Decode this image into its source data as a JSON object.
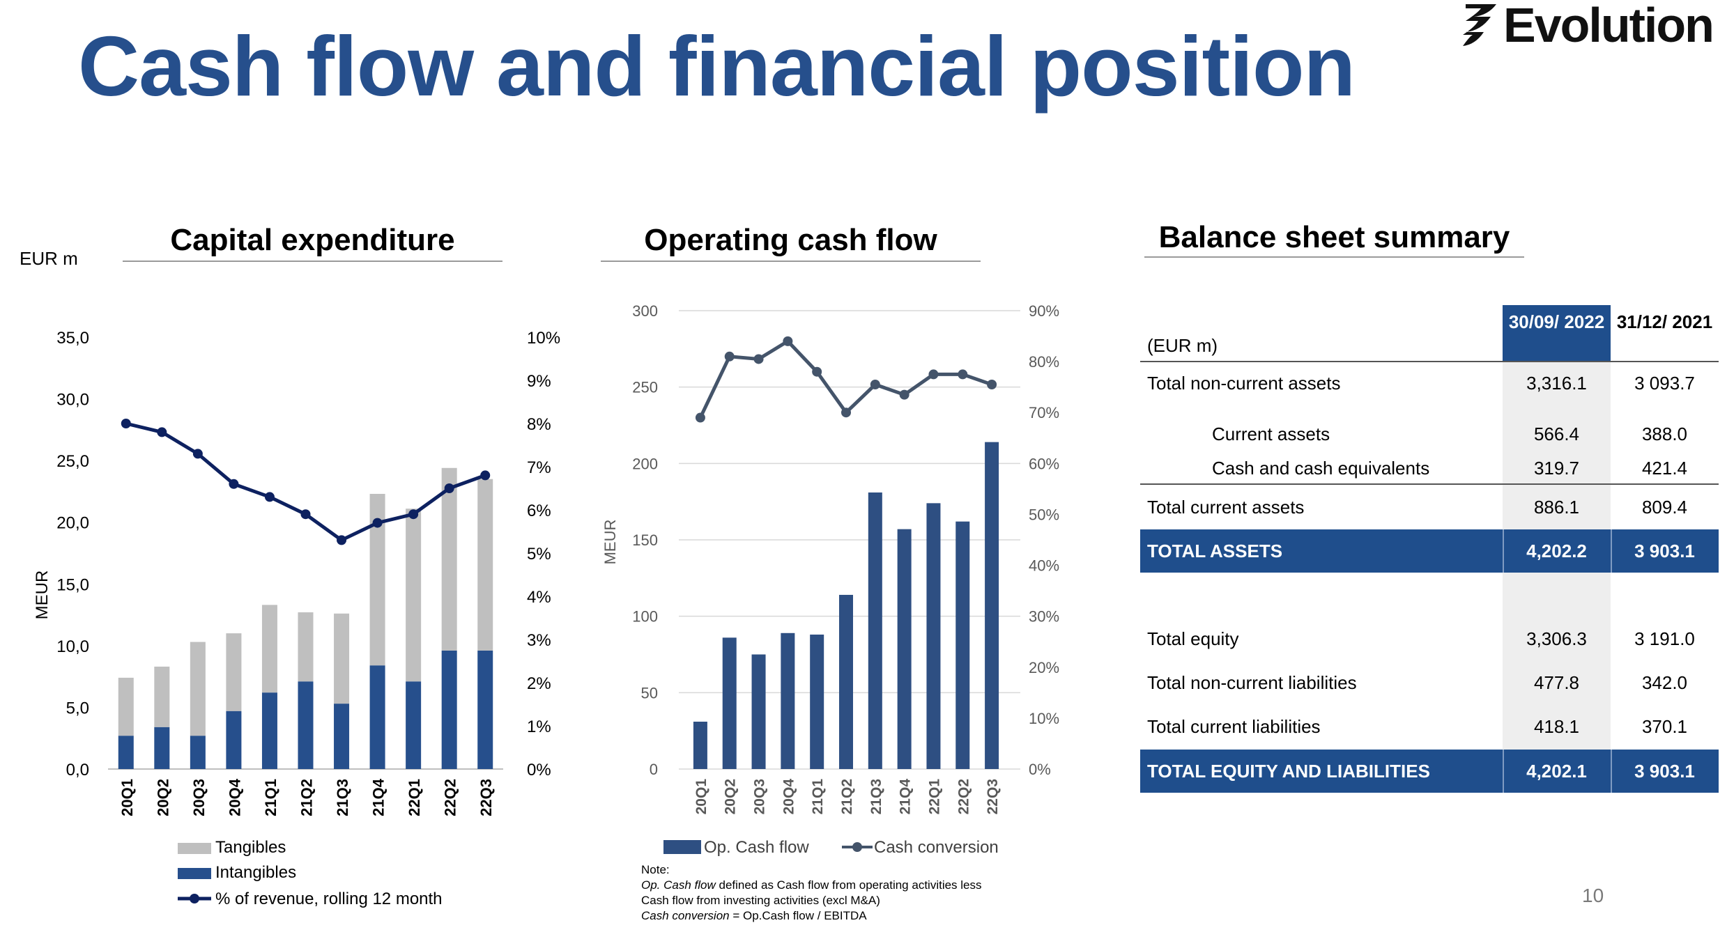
{
  "title": "Cash flow and financial position",
  "logo": {
    "text": "Evolution"
  },
  "page_number": "10",
  "capex": {
    "section_title": "Capital expenditure",
    "unit_label": "EUR m",
    "ylabel": "MEUR",
    "left_ticks": [
      "0,0",
      "5,0",
      "10,0",
      "15,0",
      "20,0",
      "25,0",
      "30,0",
      "35,0"
    ],
    "right_ticks": [
      "0%",
      "1%",
      "2%",
      "3%",
      "4%",
      "5%",
      "6%",
      "7%",
      "8%",
      "9%",
      "10%"
    ],
    "legend": [
      "Tangibles",
      "Intangibles",
      "% of revenue, rolling 12 month"
    ]
  },
  "ocf": {
    "section_title": "Operating cash flow",
    "ylabel": "MEUR",
    "left_ticks": [
      "0",
      "50",
      "100",
      "150",
      "200",
      "250",
      "300"
    ],
    "right_ticks": [
      "0%",
      "10%",
      "20%",
      "30%",
      "40%",
      "50%",
      "60%",
      "70%",
      "80%",
      "90%"
    ],
    "legend": [
      "Op. Cash flow",
      "Cash conversion"
    ],
    "note": {
      "heading": "Note:",
      "line1_em": "Op. Cash flow",
      "line1_rest": " defined as Cash flow from operating activities less",
      "line2": "Cash flow from investing activities (excl M&A)",
      "line3_em": "Cash conversion",
      "line3_rest": " = Op.Cash flow / EBITDA"
    }
  },
  "chart_data": [
    {
      "type": "bar",
      "stacked": true,
      "title": "Capital expenditure",
      "ylabel": "MEUR",
      "ylim": [
        0,
        35
      ],
      "y2lim": [
        0,
        10
      ],
      "categories": [
        "20Q1",
        "20Q2",
        "20Q3",
        "20Q4",
        "21Q1",
        "21Q2",
        "21Q3",
        "21Q4",
        "22Q1",
        "22Q2",
        "22Q3"
      ],
      "series": [
        {
          "name": "Intangibles",
          "type": "bar",
          "color": "#264f8c",
          "values": [
            2.7,
            3.4,
            2.7,
            4.7,
            6.2,
            7.1,
            5.3,
            8.4,
            7.1,
            9.6,
            9.6
          ]
        },
        {
          "name": "Tangibles",
          "type": "bar",
          "color": "#bfbfbf",
          "values": [
            4.7,
            4.9,
            7.6,
            6.3,
            7.1,
            5.6,
            7.3,
            13.9,
            14.0,
            14.8,
            13.9
          ]
        },
        {
          "name": "% of revenue, rolling 12 month",
          "type": "line",
          "axis": "right",
          "color": "#0d2160",
          "values": [
            8.0,
            7.8,
            7.3,
            6.6,
            6.3,
            5.9,
            5.3,
            5.7,
            5.9,
            6.5,
            6.8
          ]
        }
      ]
    },
    {
      "type": "bar",
      "title": "Operating cash flow",
      "ylabel": "MEUR",
      "ylim": [
        0,
        300
      ],
      "y2lim": [
        0,
        90
      ],
      "categories": [
        "20Q1",
        "20Q2",
        "20Q3",
        "20Q4",
        "21Q1",
        "21Q2",
        "21Q3",
        "21Q4",
        "22Q1",
        "22Q2",
        "22Q3"
      ],
      "series": [
        {
          "name": "Op. Cash flow",
          "type": "bar",
          "color": "#2e4f82",
          "values": [
            31,
            86,
            75,
            89,
            88,
            114,
            181,
            157,
            174,
            162,
            214
          ]
        },
        {
          "name": "Cash conversion",
          "type": "line",
          "axis": "right",
          "color": "#44546a",
          "values": [
            69,
            81,
            80.5,
            84,
            78,
            70,
            75.5,
            73.5,
            77.5,
            77.5,
            75.5
          ]
        }
      ]
    }
  ],
  "balance": {
    "section_title": "Balance sheet summary",
    "unit": "(EUR m)",
    "col1": "30/09/ 2022",
    "col2": "31/12/ 2021",
    "rows": [
      {
        "label": "Total non-current assets",
        "c1": "3,316.1",
        "c2": "3 093.7"
      },
      {
        "label": "Current assets",
        "c1": "566.4",
        "c2": "388.0"
      },
      {
        "label": "Cash and cash equivalents",
        "c1": "319.7",
        "c2": "421.4"
      },
      {
        "label": "Total current assets",
        "c1": "886.1",
        "c2": "809.4"
      },
      {
        "label": "TOTAL ASSETS",
        "c1": "4,202.2",
        "c2": "3 903.1"
      },
      {
        "label": "Total equity",
        "c1": "3,306.3",
        "c2": "3 191.0"
      },
      {
        "label": "Total non-current liabilities",
        "c1": "477.8",
        "c2": "342.0"
      },
      {
        "label": "Total current liabilities",
        "c1": "418.1",
        "c2": "370.1"
      },
      {
        "label": "TOTAL EQUITY AND LIABILITIES",
        "c1": "4,202.1",
        "c2": "3 903.1"
      }
    ]
  }
}
